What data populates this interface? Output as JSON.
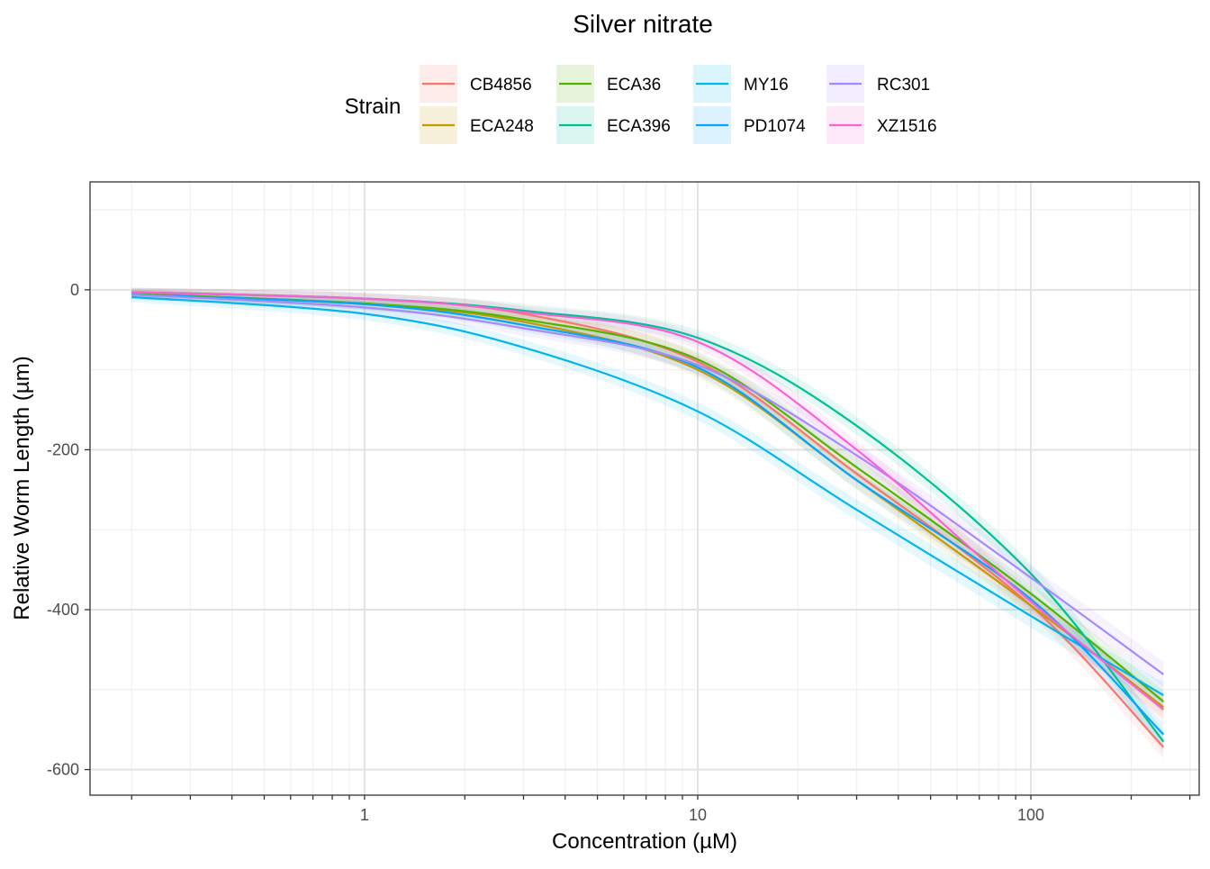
{
  "chart_data": {
    "type": "line",
    "title": "Silver nitrate",
    "xlabel": "Concentration (µM)",
    "ylabel": "Relative Worm Length (µm)",
    "x_scale": "log10",
    "xlim": [
      0.15,
      320
    ],
    "ylim": [
      -632,
      135
    ],
    "x_ticks": [
      1,
      10,
      100
    ],
    "x_tick_labels": [
      "1",
      "10",
      "100"
    ],
    "y_ticks": [
      0,
      -200,
      -400,
      -600
    ],
    "y_tick_labels": [
      "0",
      "-200",
      "-400",
      "-600"
    ],
    "grid": true,
    "legend": {
      "title": "Strain",
      "position": "top"
    },
    "series": [
      {
        "name": "CB4856",
        "color": "#F8766D",
        "ribbon_halfwidth": 14,
        "x": [
          0.2,
          1,
          3,
          10,
          30,
          100,
          250
        ],
        "y": [
          -3,
          -11,
          -30,
          -90,
          -230,
          -395,
          -572
        ]
      },
      {
        "name": "ECA248",
        "color": "#C49A00",
        "ribbon_halfwidth": 14,
        "x": [
          0.2,
          1,
          3,
          10,
          30,
          100,
          250
        ],
        "y": [
          -5,
          -18,
          -40,
          -100,
          -238,
          -395,
          -522
        ]
      },
      {
        "name": "ECA36",
        "color": "#53B400",
        "ribbon_halfwidth": 14,
        "x": [
          0.2,
          1,
          3,
          10,
          30,
          100,
          250
        ],
        "y": [
          -5,
          -17,
          -37,
          -87,
          -222,
          -380,
          -515
        ]
      },
      {
        "name": "ECA396",
        "color": "#00C094",
        "ribbon_halfwidth": 14,
        "x": [
          0.2,
          1,
          3,
          10,
          30,
          100,
          250
        ],
        "y": [
          -3,
          -11,
          -26,
          -60,
          -170,
          -355,
          -565
        ]
      },
      {
        "name": "MY16",
        "color": "#00B6EB",
        "ribbon_halfwidth": 16,
        "x": [
          0.2,
          1,
          3,
          10,
          30,
          100,
          250
        ],
        "y": [
          -9,
          -30,
          -72,
          -152,
          -275,
          -408,
          -507
        ]
      },
      {
        "name": "PD1074",
        "color": "#06A4FF",
        "ribbon_halfwidth": 14,
        "x": [
          0.2,
          1,
          3,
          10,
          30,
          100,
          250
        ],
        "y": [
          -6,
          -18,
          -44,
          -97,
          -238,
          -387,
          -556
        ]
      },
      {
        "name": "RC301",
        "color": "#A58AFF",
        "ribbon_halfwidth": 16,
        "x": [
          0.2,
          1,
          3,
          10,
          30,
          100,
          250
        ],
        "y": [
          -6,
          -22,
          -48,
          -94,
          -207,
          -360,
          -481
        ]
      },
      {
        "name": "XZ1516",
        "color": "#FB61D7",
        "ribbon_halfwidth": 14,
        "x": [
          0.2,
          1,
          3,
          10,
          30,
          100,
          250
        ],
        "y": [
          -3,
          -11,
          -28,
          -65,
          -200,
          -390,
          -525
        ]
      }
    ]
  }
}
